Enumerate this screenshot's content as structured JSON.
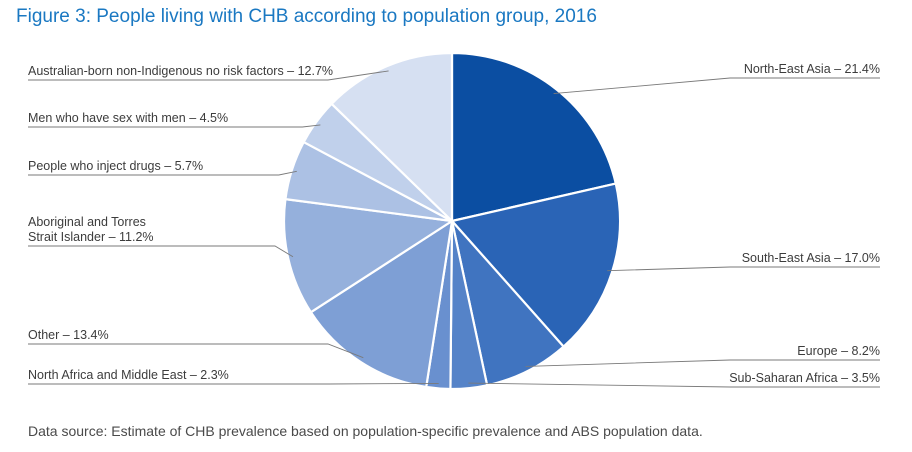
{
  "figure": {
    "title": "Figure 3: People living with CHB according to population group, 2016",
    "source": "Data source: Estimate of CHB prevalence based on population-specific prevalence and ABS population data."
  },
  "chart_data": {
    "type": "pie",
    "title": "Figure 3: People living with CHB according to population group, 2016",
    "slices": [
      {
        "name": "North-East Asia",
        "value": 21.4,
        "label": "North-East Asia – 21.4%",
        "color": "#0b4ea2"
      },
      {
        "name": "South-East Asia",
        "value": 17.0,
        "label": "South-East Asia – 17.0%",
        "color": "#2a64b6"
      },
      {
        "name": "Europe",
        "value": 8.2,
        "label": "Europe – 8.2%",
        "color": "#4074c0"
      },
      {
        "name": "Sub-Saharan Africa",
        "value": 3.5,
        "label": "Sub-Saharan Africa – 3.5%",
        "color": "#5583c8"
      },
      {
        "name": "North Africa and Middle East",
        "value": 2.3,
        "label": "North Africa and Middle East – 2.3%",
        "color": "#6990cf"
      },
      {
        "name": "Other",
        "value": 13.4,
        "label": "Other – 13.4%",
        "color": "#7e9fd5"
      },
      {
        "name": "Aboriginal and Torres Strait Islander",
        "value": 11.2,
        "label": "Aboriginal and Torres\nStrait Islander – 11.2%",
        "color": "#95b0dc"
      },
      {
        "name": "People who inject drugs",
        "value": 5.7,
        "label": "People who inject drugs – 5.7%",
        "color": "#acc1e4"
      },
      {
        "name": "Men who have sex with men",
        "value": 4.5,
        "label": "Men who have sex with men – 4.5%",
        "color": "#c0d0eb"
      },
      {
        "name": "Australian-born non-Indigenous no risk factors",
        "value": 12.7,
        "label": "Australian-born non-Indigenous no risk factors – 12.7%",
        "color": "#d6e0f2"
      }
    ],
    "start": "12 o'clock",
    "direction": "clockwise",
    "slice_border_color": "#ffffff",
    "leader_line_color": "#7a7a7a"
  }
}
